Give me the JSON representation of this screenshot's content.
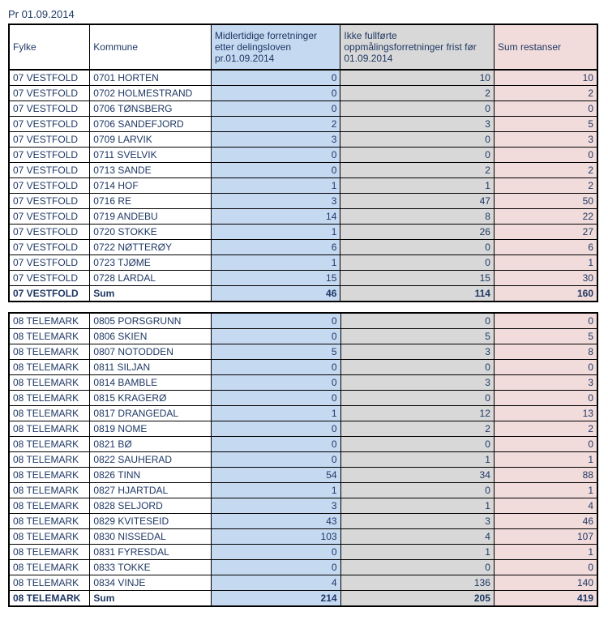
{
  "title": "Pr 01.09.2014",
  "columns": [
    "Fylke",
    "Kommune",
    "Midlertidige forretninger etter delingsloven pr.01.09.2014",
    "Ikke fullførte oppmålingsforretninger frist før 01.09.2014",
    "Sum restanser"
  ],
  "column_colors": [
    "#ffffff",
    "#ffffff",
    "#c5d9f1",
    "#d8d8d8",
    "#f2dcdb"
  ],
  "text_color": "#1f3864",
  "blocks": [
    {
      "rows": [
        [
          "07 VESTFOLD",
          "0701 HORTEN",
          "0",
          "10",
          "10"
        ],
        [
          "07 VESTFOLD",
          "0702 HOLMESTRAND",
          "0",
          "2",
          "2"
        ],
        [
          "07 VESTFOLD",
          "0706 TØNSBERG",
          "0",
          "0",
          "0"
        ],
        [
          "07 VESTFOLD",
          "0706 SANDEFJORD",
          "2",
          "3",
          "5"
        ],
        [
          "07 VESTFOLD",
          "0709 LARVIK",
          "3",
          "0",
          "3"
        ],
        [
          "07 VESTFOLD",
          "0711 SVELVIK",
          "0",
          "0",
          "0"
        ],
        [
          "07 VESTFOLD",
          "0713 SANDE",
          "0",
          "2",
          "2"
        ],
        [
          "07 VESTFOLD",
          "0714 HOF",
          "1",
          "1",
          "2"
        ],
        [
          "07 VESTFOLD",
          "0716 RE",
          "3",
          "47",
          "50"
        ],
        [
          "07 VESTFOLD",
          "0719 ANDEBU",
          "14",
          "8",
          "22"
        ],
        [
          "07 VESTFOLD",
          "0720 STOKKE",
          "1",
          "26",
          "27"
        ],
        [
          "07 VESTFOLD",
          "0722 NØTTERØY",
          "6",
          "0",
          "6"
        ],
        [
          "07 VESTFOLD",
          "0723 TJØME",
          "1",
          "0",
          "1"
        ],
        [
          "07 VESTFOLD",
          "0728 LARDAL",
          "15",
          "15",
          "30"
        ]
      ],
      "sum": [
        "07 VESTFOLD",
        "Sum",
        "46",
        "114",
        "160"
      ]
    },
    {
      "rows": [
        [
          "08 TELEMARK",
          "0805 PORSGRUNN",
          "0",
          "0",
          "0"
        ],
        [
          "08 TELEMARK",
          "0806 SKIEN",
          "0",
          "5",
          "5"
        ],
        [
          "08 TELEMARK",
          "0807 NOTODDEN",
          "5",
          "3",
          "8"
        ],
        [
          "08 TELEMARK",
          "0811 SILJAN",
          "0",
          "0",
          "0"
        ],
        [
          "08 TELEMARK",
          "0814 BAMBLE",
          "0",
          "3",
          "3"
        ],
        [
          "08 TELEMARK",
          "0815 KRAGERØ",
          "0",
          "0",
          "0"
        ],
        [
          "08 TELEMARK",
          "0817 DRANGEDAL",
          "1",
          "12",
          "13"
        ],
        [
          "08 TELEMARK",
          "0819 NOME",
          "0",
          "2",
          "2"
        ],
        [
          "08 TELEMARK",
          "0821 BØ",
          "0",
          "0",
          "0"
        ],
        [
          "08 TELEMARK",
          "0822 SAUHERAD",
          "0",
          "1",
          "1"
        ],
        [
          "08 TELEMARK",
          "0826 TINN",
          "54",
          "34",
          "88"
        ],
        [
          "08 TELEMARK",
          "0827 HJARTDAL",
          "1",
          "0",
          "1"
        ],
        [
          "08 TELEMARK",
          "0828 SELJORD",
          "3",
          "1",
          "4"
        ],
        [
          "08 TELEMARK",
          "0829 KVITESEID",
          "43",
          "3",
          "46"
        ],
        [
          "08 TELEMARK",
          "0830 NISSEDAL",
          "103",
          "4",
          "107"
        ],
        [
          "08 TELEMARK",
          "0831 FYRESDAL",
          "0",
          "1",
          "1"
        ],
        [
          "08 TELEMARK",
          "0833 TOKKE",
          "0",
          "0",
          "0"
        ],
        [
          "08 TELEMARK",
          "0834 VINJE",
          "4",
          "136",
          "140"
        ]
      ],
      "sum": [
        "08 TELEMARK",
        "Sum",
        "214",
        "205",
        "419"
      ]
    }
  ]
}
